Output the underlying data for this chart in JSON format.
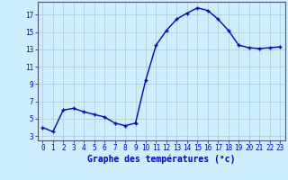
{
  "hours": [
    0,
    1,
    2,
    3,
    4,
    5,
    6,
    7,
    8,
    9,
    10,
    11,
    12,
    13,
    14,
    15,
    16,
    17,
    18,
    19,
    20,
    21,
    22,
    23
  ],
  "temperatures": [
    4.0,
    3.5,
    6.0,
    6.2,
    5.8,
    5.5,
    5.2,
    4.5,
    4.2,
    4.5,
    9.5,
    13.5,
    15.2,
    16.5,
    17.2,
    17.8,
    17.5,
    16.5,
    15.2,
    13.5,
    13.2,
    13.1,
    13.2,
    13.3
  ],
  "line_color": "#0000cc",
  "marker": "+",
  "marker_size": 3,
  "marker_edge_width": 1.0,
  "bg_color": "#cceeff",
  "grid_color": "#aacccc",
  "xlabel": "Graphe des températures (°c)",
  "tick_color": "#0000cc",
  "ylim": [
    2.5,
    18.5
  ],
  "xlim": [
    -0.5,
    23.5
  ],
  "yticks": [
    3,
    5,
    7,
    9,
    11,
    13,
    15,
    17
  ],
  "xticks": [
    0,
    1,
    2,
    3,
    4,
    5,
    6,
    7,
    8,
    9,
    10,
    11,
    12,
    13,
    14,
    15,
    16,
    17,
    18,
    19,
    20,
    21,
    22,
    23
  ],
  "line_width": 1.0,
  "tick_fontsize": 5.5,
  "xlabel_fontsize": 7.0
}
